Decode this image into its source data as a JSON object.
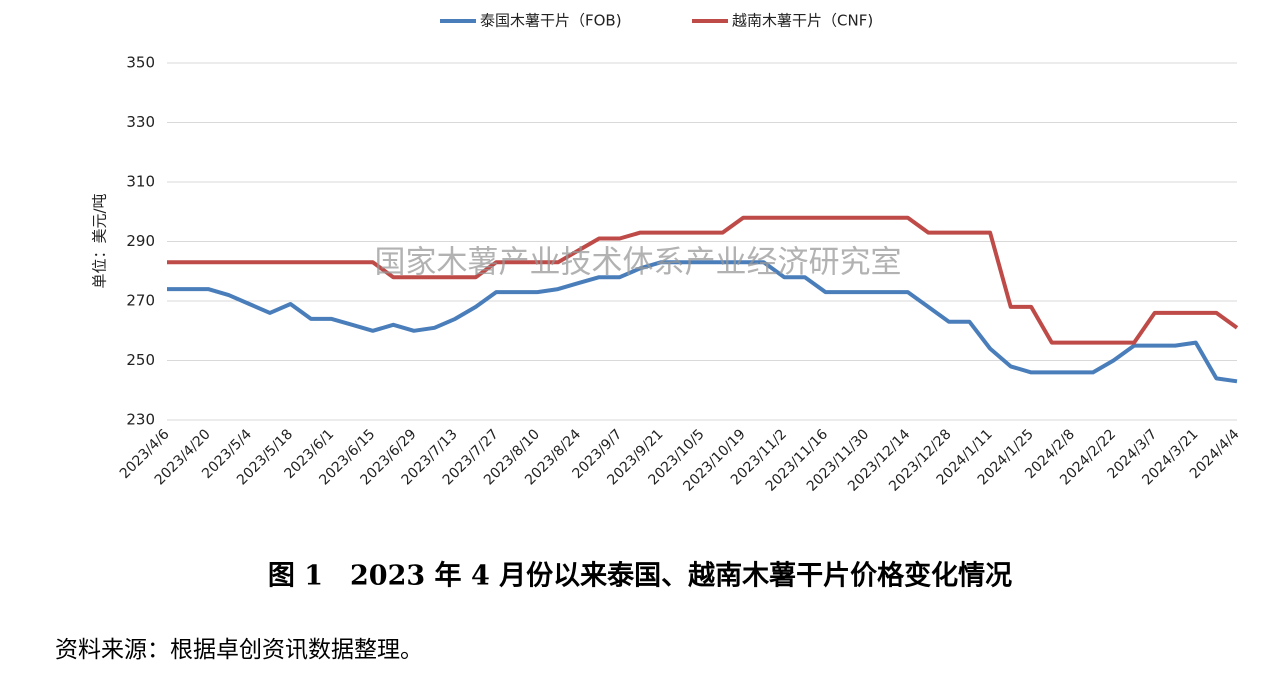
{
  "chart_data": {
    "type": "line",
    "y_label": "单位：美元/吨",
    "watermark": "国家木薯产业技术体系产业经济研究室",
    "caption": "图 1　2023 年 4 月份以来泰国、越南木薯干片价格变化情况",
    "source": "资料来源：根据卓创资讯数据整理。",
    "categories": [
      "2023/4/6",
      null,
      "2023/4/20",
      null,
      "2023/5/4",
      null,
      "2023/5/18",
      null,
      "2023/6/1",
      null,
      "2023/6/15",
      null,
      "2023/6/29",
      null,
      "2023/7/13",
      null,
      "2023/7/27",
      null,
      "2023/8/10",
      null,
      "2023/8/24",
      null,
      "2023/9/7",
      null,
      "2023/9/21",
      null,
      "2023/10/5",
      null,
      "2023/10/19",
      null,
      "2023/11/2",
      null,
      "2023/11/16",
      null,
      "2023/11/30",
      null,
      "2023/12/14",
      null,
      "2023/12/28",
      null,
      "2024/1/11",
      null,
      "2024/1/25",
      null,
      "2024/2/8",
      null,
      "2024/2/22",
      null,
      "2024/3/7",
      null,
      "2024/3/21",
      null,
      "2024/4/4"
    ],
    "series": [
      {
        "name": "泰国木薯干片（FOB)",
        "color": "#4a7ebb",
        "values": [
          274,
          274,
          274,
          272,
          269,
          266,
          269,
          264,
          264,
          262,
          260,
          262,
          260,
          261,
          264,
          268,
          273,
          273,
          273,
          274,
          276,
          278,
          278,
          281,
          283,
          283,
          283,
          283,
          283,
          283,
          278,
          278,
          273,
          273,
          273,
          273,
          273,
          268,
          263,
          263,
          254,
          248,
          246,
          246,
          246,
          246,
          250,
          255,
          255,
          255,
          256,
          244,
          243
        ]
      },
      {
        "name": "越南木薯干片（CNF)",
        "color": "#be4b48",
        "values": [
          283,
          283,
          283,
          283,
          283,
          283,
          283,
          283,
          283,
          283,
          283,
          278,
          278,
          278,
          278,
          278,
          283,
          283,
          283,
          283,
          287,
          291,
          291,
          293,
          293,
          293,
          293,
          293,
          298,
          298,
          298,
          298,
          298,
          298,
          298,
          298,
          298,
          293,
          293,
          293,
          293,
          268,
          268,
          256,
          256,
          256,
          256,
          256,
          266,
          266,
          266,
          266,
          261
        ]
      }
    ],
    "ylim": [
      230,
      350
    ],
    "yticks": [
      230,
      250,
      270,
      290,
      310,
      330,
      350
    ],
    "grid": true,
    "legend": "top"
  }
}
